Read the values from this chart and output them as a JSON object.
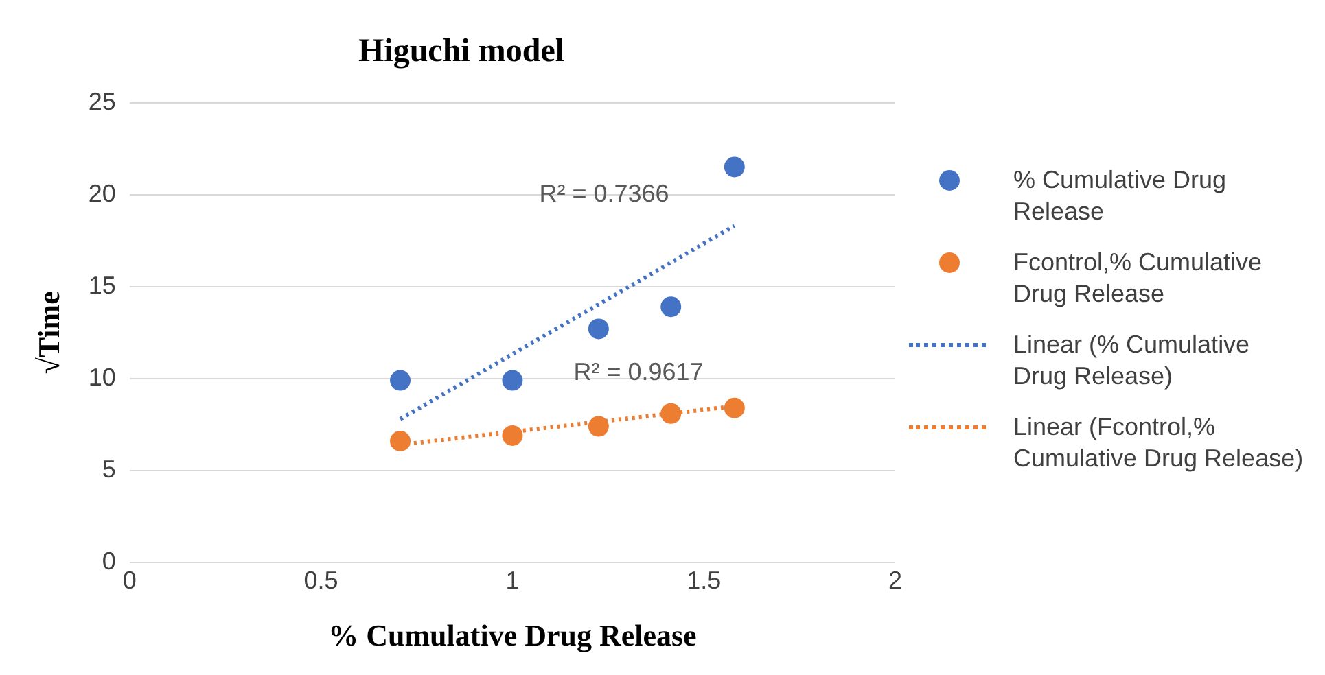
{
  "chart_data": {
    "type": "scatter",
    "title": "Higuchi model",
    "xlabel": "% Cumulative Drug Release",
    "ylabel": "√Time",
    "xlim": [
      0,
      2
    ],
    "xticks": [
      0,
      0.5,
      1,
      1.5,
      2
    ],
    "ylim": [
      0,
      25
    ],
    "yticks": [
      0,
      5,
      10,
      15,
      20,
      25
    ],
    "grid": "y",
    "legend": "right",
    "series": [
      {
        "name": "% Cumulative Drug Release",
        "type": "scatter",
        "marker": "circle",
        "color": "#4472c4",
        "x": [
          0.707,
          1,
          1.225,
          1.414,
          1.58
        ],
        "values": [
          9.9,
          9.9,
          12.7,
          13.9,
          21.5
        ]
      },
      {
        "name": "Fcontrol,% Cumulative Drug Release",
        "type": "scatter",
        "marker": "circle",
        "color": "#ed7d31",
        "x": [
          0.707,
          1,
          1.225,
          1.414,
          1.58
        ],
        "values": [
          6.6,
          6.9,
          7.4,
          8.1,
          8.4
        ]
      },
      {
        "name": "Linear (% Cumulative Drug Release)",
        "type": "line",
        "marker": "none",
        "line_style": "dotted",
        "color": "#4472c4",
        "x": [
          0.707,
          1.58
        ],
        "values": [
          7.8,
          18.3
        ]
      },
      {
        "name": "Linear (Fcontrol,% Cumulative Drug Release)",
        "type": "line",
        "marker": "none",
        "line_style": "dotted",
        "color": "#ed7d31",
        "x": [
          0.707,
          1.58
        ],
        "values": [
          6.4,
          8.5
        ]
      }
    ],
    "annotations": [
      "R² = 0.7366",
      "R² = 0.9617"
    ]
  }
}
